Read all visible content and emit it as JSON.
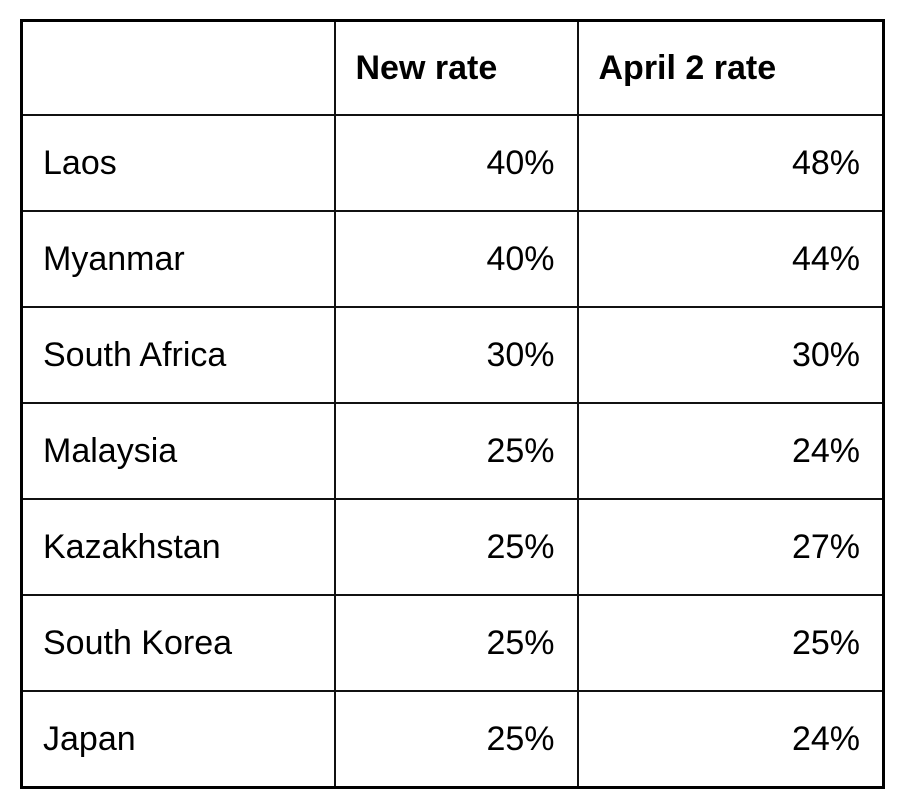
{
  "table": {
    "headers": [
      "",
      "New rate",
      "April 2 rate"
    ],
    "rows": [
      {
        "country": "Laos",
        "new_rate": "40%",
        "april2_rate": "48%"
      },
      {
        "country": "Myanmar",
        "new_rate": "40%",
        "april2_rate": "44%"
      },
      {
        "country": "South Africa",
        "new_rate": "30%",
        "april2_rate": "30%"
      },
      {
        "country": "Malaysia",
        "new_rate": "25%",
        "april2_rate": "24%"
      },
      {
        "country": "Kazakhstan",
        "new_rate": "25%",
        "april2_rate": "27%"
      },
      {
        "country": "South Korea",
        "new_rate": "25%",
        "april2_rate": "25%"
      },
      {
        "country": "Japan",
        "new_rate": "25%",
        "april2_rate": "24%"
      }
    ]
  }
}
